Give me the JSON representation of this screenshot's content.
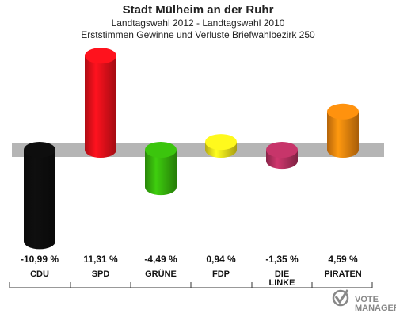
{
  "header": {
    "title": "Stadt Mülheim an der Ruhr",
    "subtitle": "Landtagswahl 2012 - Landtagswahl 2010",
    "subtitle2": "Erststimmen Gewinne und Verluste Briefwahlbezirk 250"
  },
  "logo": {
    "text": "VOTE MANAGER"
  },
  "chart_data": {
    "type": "bar",
    "title": "Stadt Mülheim an der Ruhr",
    "categories": [
      "CDU",
      "SPD",
      "GRÜNE",
      "FDP",
      "DIE LINKE",
      "PIRATEN"
    ],
    "category_lines": [
      [
        "CDU"
      ],
      [
        "SPD"
      ],
      [
        "GRÜNE"
      ],
      [
        "FDP"
      ],
      [
        "DIE",
        "LINKE"
      ],
      [
        "PIRATEN"
      ]
    ],
    "values": [
      -10.99,
      11.31,
      -4.49,
      0.94,
      -1.35,
      4.59
    ],
    "value_labels": [
      "-10,99 %",
      "11,31 %",
      "-4,49 %",
      "0,94 %",
      "-1,35 %",
      "4,59 %"
    ],
    "colors": [
      "#0d0d0d",
      "#e8101a",
      "#36b30c",
      "#f2e21a",
      "#b53060",
      "#f0850d"
    ],
    "xlabel": "",
    "ylabel": "",
    "ylim": [
      -11.5,
      11.5
    ],
    "grid": false,
    "legend": "none"
  }
}
